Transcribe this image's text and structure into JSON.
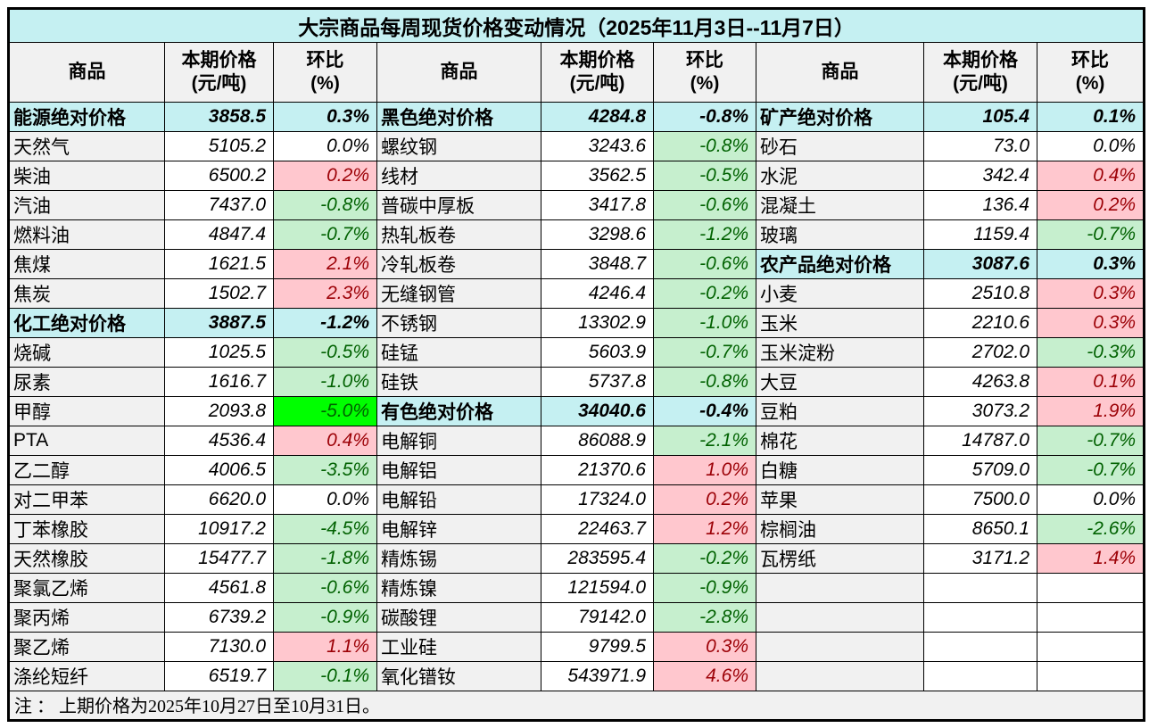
{
  "title": "大宗商品每周现货价格变动情况（2025年11月3日--11月7日）",
  "note": "注 ： 上期价格为2025年10月27日至10月31日。",
  "header": {
    "commodity": "商品",
    "price": "本期价格",
    "price_unit": "(元/吨)",
    "change": "环比",
    "change_unit": "(%)"
  },
  "colors": {
    "title_bg": "#C5F0F2",
    "category_bg": "#C5F0F2",
    "header_bg": "#F1F1F1",
    "name_col_bg": "#F1F1F1",
    "up_bg": "#FFC7CE",
    "up_text": "#9C0006",
    "down_bg": "#C6EFCE",
    "down_text": "#006100",
    "strong_down_bg": "#00FF00",
    "border": "#000000"
  },
  "groups": [
    {
      "rows": [
        {
          "type": "category",
          "trend": "category",
          "name": "能源绝对价格",
          "price": "3858.5",
          "change": "0.3%"
        },
        {
          "type": "item",
          "trend": "flat",
          "name": "天然气",
          "price": "5105.2",
          "change": "0.0%"
        },
        {
          "type": "item",
          "trend": "up",
          "name": "柴油",
          "price": "6500.2",
          "change": "0.2%"
        },
        {
          "type": "item",
          "trend": "down",
          "name": "汽油",
          "price": "7437.0",
          "change": "-0.8%"
        },
        {
          "type": "item",
          "trend": "down",
          "name": "燃料油",
          "price": "4847.4",
          "change": "-0.7%"
        },
        {
          "type": "item",
          "trend": "up",
          "name": "焦煤",
          "price": "1621.5",
          "change": "2.1%"
        },
        {
          "type": "item",
          "trend": "up",
          "name": "焦炭",
          "price": "1502.7",
          "change": "2.3%"
        },
        {
          "type": "category",
          "trend": "category",
          "name": "化工绝对价格",
          "price": "3887.5",
          "change": "-1.2%"
        },
        {
          "type": "item",
          "trend": "down",
          "name": "烧碱",
          "price": "1025.5",
          "change": "-0.5%"
        },
        {
          "type": "item",
          "trend": "down",
          "name": "尿素",
          "price": "1616.7",
          "change": "-1.0%"
        },
        {
          "type": "item",
          "trend": "strong-down",
          "name": "甲醇",
          "price": "2093.8",
          "change": "-5.0%"
        },
        {
          "type": "item",
          "trend": "up",
          "name": "PTA",
          "price": "4536.4",
          "change": "0.4%"
        },
        {
          "type": "item",
          "trend": "down",
          "name": "乙二醇",
          "price": "4006.5",
          "change": "-3.5%"
        },
        {
          "type": "item",
          "trend": "flat",
          "name": "对二甲苯",
          "price": "6620.0",
          "change": "0.0%"
        },
        {
          "type": "item",
          "trend": "down",
          "name": "丁苯橡胶",
          "price": "10917.2",
          "change": "-4.5%"
        },
        {
          "type": "item",
          "trend": "down",
          "name": "天然橡胶",
          "price": "15477.7",
          "change": "-1.8%"
        },
        {
          "type": "item",
          "trend": "down",
          "name": "聚氯乙烯",
          "price": "4561.8",
          "change": "-0.6%"
        },
        {
          "type": "item",
          "trend": "down",
          "name": "聚丙烯",
          "price": "6739.2",
          "change": "-0.9%"
        },
        {
          "type": "item",
          "trend": "up",
          "name": "聚乙烯",
          "price": "7130.0",
          "change": "1.1%"
        },
        {
          "type": "item",
          "trend": "down",
          "name": "涤纶短纤",
          "price": "6519.7",
          "change": "-0.1%"
        }
      ]
    },
    {
      "rows": [
        {
          "type": "category",
          "trend": "category",
          "name": "黑色绝对价格",
          "price": "4284.8",
          "change": "-0.8%"
        },
        {
          "type": "item",
          "trend": "down",
          "name": "螺纹钢",
          "price": "3243.6",
          "change": "-0.8%"
        },
        {
          "type": "item",
          "trend": "down",
          "name": "线材",
          "price": "3562.5",
          "change": "-0.5%"
        },
        {
          "type": "item",
          "trend": "down",
          "name": "普碳中厚板",
          "price": "3417.8",
          "change": "-0.6%"
        },
        {
          "type": "item",
          "trend": "down",
          "name": "热轧板卷",
          "price": "3298.6",
          "change": "-1.2%"
        },
        {
          "type": "item",
          "trend": "down",
          "name": "冷轧板卷",
          "price": "3848.7",
          "change": "-0.6%"
        },
        {
          "type": "item",
          "trend": "down",
          "name": "无缝钢管",
          "price": "4246.4",
          "change": "-0.2%"
        },
        {
          "type": "item",
          "trend": "down",
          "name": "不锈钢",
          "price": "13302.9",
          "change": "-1.0%"
        },
        {
          "type": "item",
          "trend": "down",
          "name": "硅锰",
          "price": "5603.9",
          "change": "-0.7%"
        },
        {
          "type": "item",
          "trend": "down",
          "name": "硅铁",
          "price": "5737.8",
          "change": "-0.8%"
        },
        {
          "type": "category",
          "trend": "category",
          "name": "有色绝对价格",
          "price": "34040.6",
          "change": "-0.4%"
        },
        {
          "type": "item",
          "trend": "down",
          "name": "电解铜",
          "price": "86088.9",
          "change": "-2.1%"
        },
        {
          "type": "item",
          "trend": "up",
          "name": "电解铝",
          "price": "21370.6",
          "change": "1.0%"
        },
        {
          "type": "item",
          "trend": "up",
          "name": "电解铅",
          "price": "17324.0",
          "change": "0.2%"
        },
        {
          "type": "item",
          "trend": "up",
          "name": "电解锌",
          "price": "22463.7",
          "change": "1.2%"
        },
        {
          "type": "item",
          "trend": "down",
          "name": "精炼锡",
          "price": "283595.4",
          "change": "-0.2%"
        },
        {
          "type": "item",
          "trend": "down",
          "name": "精炼镍",
          "price": "121594.0",
          "change": "-0.9%"
        },
        {
          "type": "item",
          "trend": "down",
          "name": "碳酸锂",
          "price": "79142.0",
          "change": "-2.8%"
        },
        {
          "type": "item",
          "trend": "up",
          "name": "工业硅",
          "price": "9799.5",
          "change": "0.3%"
        },
        {
          "type": "item",
          "trend": "up",
          "name": "氧化镨钕",
          "price": "543971.9",
          "change": "4.6%"
        }
      ]
    },
    {
      "rows": [
        {
          "type": "category",
          "trend": "category",
          "name": "矿产绝对价格",
          "price": "105.4",
          "change": "0.1%"
        },
        {
          "type": "item",
          "trend": "flat",
          "name": "砂石",
          "price": "73.0",
          "change": "0.0%"
        },
        {
          "type": "item",
          "trend": "up",
          "name": "水泥",
          "price": "342.4",
          "change": "0.4%"
        },
        {
          "type": "item",
          "trend": "up",
          "name": "混凝土",
          "price": "136.4",
          "change": "0.2%"
        },
        {
          "type": "item",
          "trend": "down",
          "name": "玻璃",
          "price": "1159.4",
          "change": "-0.7%"
        },
        {
          "type": "category",
          "trend": "category",
          "name": "农产品绝对价格",
          "price": "3087.6",
          "change": "0.3%"
        },
        {
          "type": "item",
          "trend": "up",
          "name": "小麦",
          "price": "2510.8",
          "change": "0.3%"
        },
        {
          "type": "item",
          "trend": "up",
          "name": "玉米",
          "price": "2210.6",
          "change": "0.3%"
        },
        {
          "type": "item",
          "trend": "down",
          "name": "玉米淀粉",
          "price": "2702.0",
          "change": "-0.3%"
        },
        {
          "type": "item",
          "trend": "up",
          "name": "大豆",
          "price": "4263.8",
          "change": "0.1%"
        },
        {
          "type": "item",
          "trend": "up",
          "name": "豆粕",
          "price": "3073.2",
          "change": "1.9%"
        },
        {
          "type": "item",
          "trend": "down",
          "name": "棉花",
          "price": "14787.0",
          "change": "-0.7%"
        },
        {
          "type": "item",
          "trend": "down",
          "name": "白糖",
          "price": "5709.0",
          "change": "-0.7%"
        },
        {
          "type": "item",
          "trend": "flat",
          "name": "苹果",
          "price": "7500.0",
          "change": "0.0%"
        },
        {
          "type": "item",
          "trend": "down",
          "name": "棕榈油",
          "price": "8650.1",
          "change": "-2.6%"
        },
        {
          "type": "item",
          "trend": "up",
          "name": "瓦楞纸",
          "price": "3171.2",
          "change": "1.4%"
        },
        {
          "type": "empty",
          "trend": "",
          "name": "",
          "price": "",
          "change": ""
        },
        {
          "type": "empty",
          "trend": "",
          "name": "",
          "price": "",
          "change": ""
        },
        {
          "type": "empty",
          "trend": "",
          "name": "",
          "price": "",
          "change": ""
        },
        {
          "type": "empty",
          "trend": "",
          "name": "",
          "price": "",
          "change": ""
        }
      ]
    }
  ]
}
